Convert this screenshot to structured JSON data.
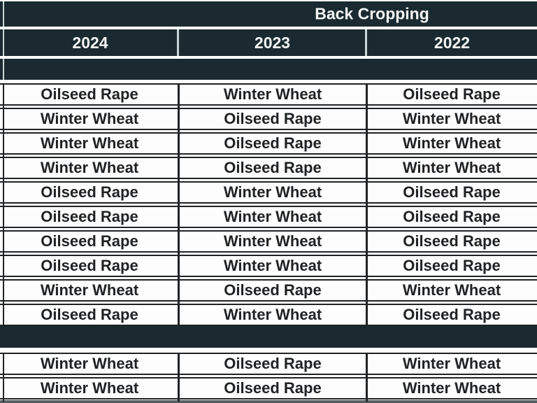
{
  "table": {
    "title": "Back Cropping",
    "columns": [
      "2024",
      "2023",
      "2022"
    ],
    "rows_upper": [
      [
        "Oilseed Rape",
        "Winter Wheat",
        "Oilseed Rape"
      ],
      [
        "Winter Wheat",
        "Oilseed Rape",
        "Winter Wheat"
      ],
      [
        "Winter Wheat",
        "Oilseed Rape",
        "Winter Wheat"
      ],
      [
        "Winter Wheat",
        "Oilseed Rape",
        "Winter Wheat"
      ],
      [
        "Oilseed Rape",
        "Winter Wheat",
        "Oilseed Rape"
      ],
      [
        "Oilseed Rape",
        "Winter Wheat",
        "Oilseed Rape"
      ],
      [
        "Oilseed Rape",
        "Winter Wheat",
        "Oilseed Rape"
      ],
      [
        "Oilseed Rape",
        "Winter Wheat",
        "Oilseed Rape"
      ],
      [
        "Winter Wheat",
        "Oilseed Rape",
        "Winter Wheat"
      ],
      [
        "Oilseed Rape",
        "Winter Wheat",
        "Oilseed Rape"
      ]
    ],
    "rows_lower": [
      [
        "Winter Wheat",
        "Oilseed Rape",
        "Winter Wheat"
      ],
      [
        "Winter Wheat",
        "Oilseed Rape",
        "Winter Wheat"
      ]
    ]
  },
  "colors": {
    "header_band": "#1a2a30",
    "header_text": "#f3f6f6",
    "header_divider": "#c9d6d6",
    "cell_border": "#202224",
    "cell_text": "#202224",
    "row_background": "#fdfdfd",
    "bottom_strip": "#555f62"
  },
  "chart_data": {
    "type": "table",
    "title": "Back Cropping",
    "columns": [
      "2024",
      "2023",
      "2022"
    ],
    "rows": [
      [
        "Oilseed Rape",
        "Winter Wheat",
        "Oilseed Rape"
      ],
      [
        "Winter Wheat",
        "Oilseed Rape",
        "Winter Wheat"
      ],
      [
        "Winter Wheat",
        "Oilseed Rape",
        "Winter Wheat"
      ],
      [
        "Winter Wheat",
        "Oilseed Rape",
        "Winter Wheat"
      ],
      [
        "Oilseed Rape",
        "Winter Wheat",
        "Oilseed Rape"
      ],
      [
        "Oilseed Rape",
        "Winter Wheat",
        "Oilseed Rape"
      ],
      [
        "Oilseed Rape",
        "Winter Wheat",
        "Oilseed Rape"
      ],
      [
        "Oilseed Rape",
        "Winter Wheat",
        "Oilseed Rape"
      ],
      [
        "Winter Wheat",
        "Oilseed Rape",
        "Winter Wheat"
      ],
      [
        "Oilseed Rape",
        "Winter Wheat",
        "Oilseed Rape"
      ],
      [
        "Winter Wheat",
        "Oilseed Rape",
        "Winter Wheat"
      ],
      [
        "Winter Wheat",
        "Oilseed Rape",
        "Winter Wheat"
      ]
    ],
    "separator_band_after_row": 10,
    "layout_hints": {
      "title_band_empty_subrow": true,
      "grid": "dark borders in white body, light borders in dark header"
    }
  }
}
